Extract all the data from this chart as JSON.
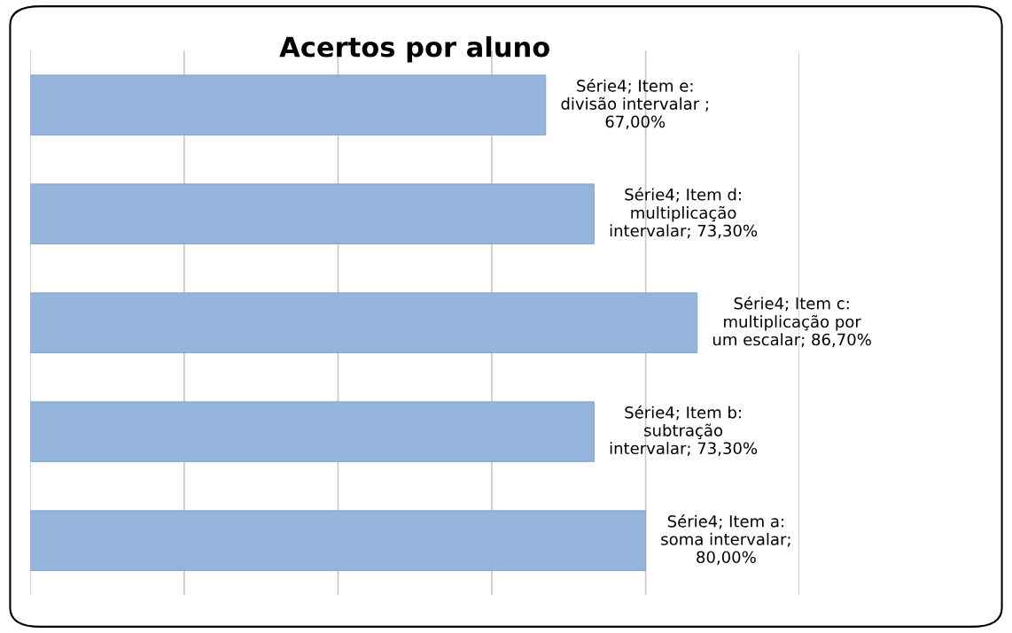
{
  "chart_data": {
    "type": "bar",
    "orientation": "horizontal",
    "title": "Acertos por aluno",
    "categories": [
      null,
      null,
      null,
      null,
      null
    ],
    "values": [
      67.0,
      73.3,
      86.7,
      73.3,
      80.0
    ],
    "value_labels": [
      "Série4; Item e:\ndivisão intervalar ;\n67,00%",
      "Série4; Item d:\nmultiplicação\nintervalar; 73,30%",
      "Série4; Item c:\nmultiplicação por\num escalar; 86,70%",
      "Série4; Item b:\nsubtração\nintervalar; 73,30%",
      "Série4; Item a:\nsoma intervalar;\n80,00%"
    ],
    "color": "#94b4dc",
    "xlim": [
      0,
      100
    ],
    "xticks": [
      {
        "value": 0,
        "label": null
      },
      {
        "value": 20,
        "label": null
      },
      {
        "value": 40,
        "label": null
      },
      {
        "value": 60,
        "label": null
      },
      {
        "value": 80,
        "label": null
      },
      {
        "value": 100,
        "label": null
      }
    ],
    "grid": "x"
  }
}
